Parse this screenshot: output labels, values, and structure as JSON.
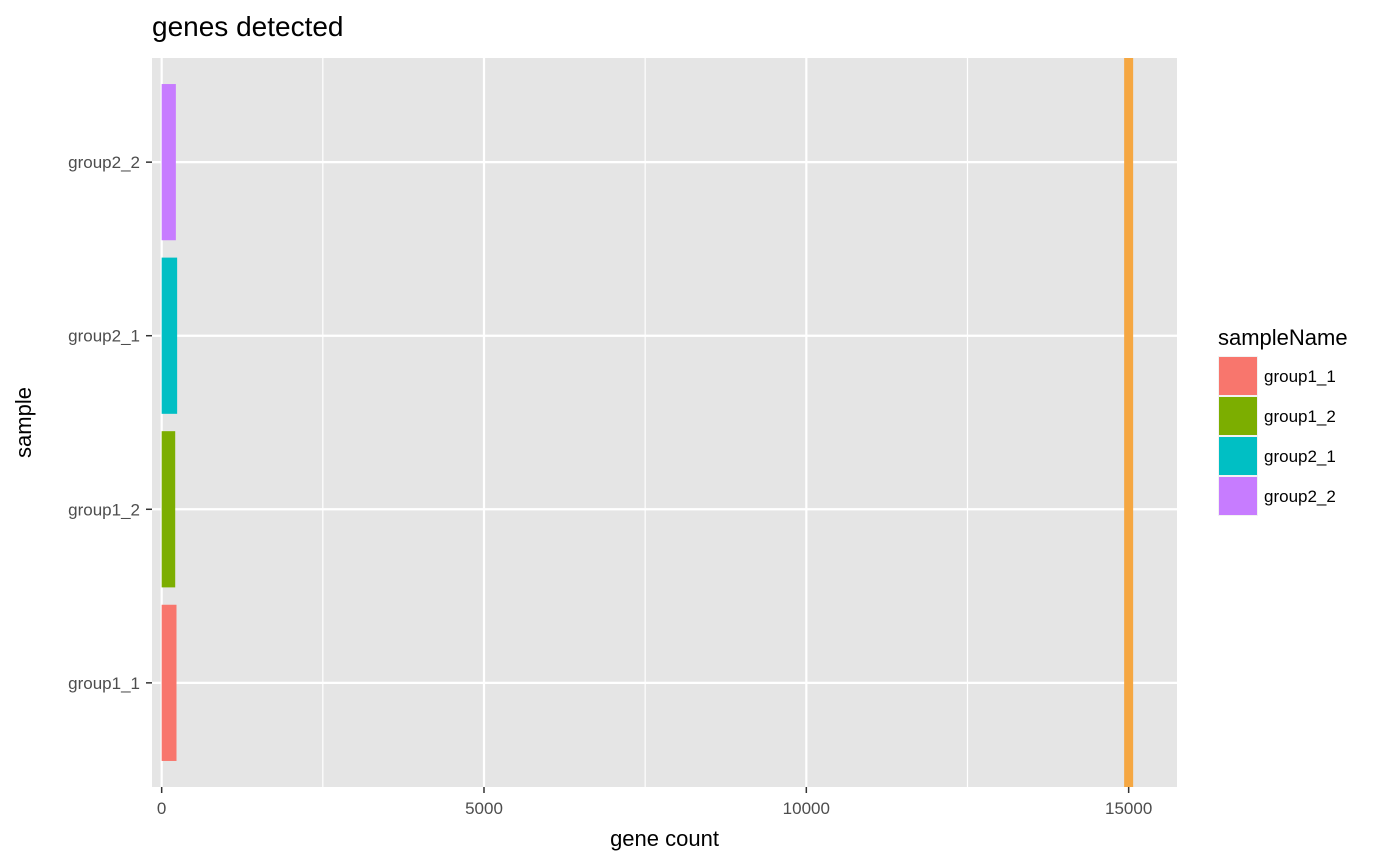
{
  "chart_data": {
    "type": "bar",
    "orientation": "horizontal",
    "title": "genes detected",
    "xlabel": "gene count",
    "ylabel": "sample",
    "categories": [
      "group1_1",
      "group1_2",
      "group2_1",
      "group2_2"
    ],
    "values": [
      230,
      210,
      240,
      220
    ],
    "colors": [
      "#F8766D",
      "#7CAE00",
      "#00BFC4",
      "#C77CFF"
    ],
    "xlim": [
      -150,
      15750
    ],
    "xticks": [
      0,
      5000,
      10000,
      15000
    ],
    "xtick_labels": [
      "0",
      "5000",
      "10000",
      "15000"
    ],
    "reference_line": {
      "x": 15000,
      "color": "#F5A742"
    },
    "grid": true,
    "background": "#E5E5E5",
    "legend": {
      "title": "sampleName",
      "position": "right",
      "items": [
        "group1_1",
        "group1_2",
        "group2_1",
        "group2_2"
      ]
    }
  }
}
